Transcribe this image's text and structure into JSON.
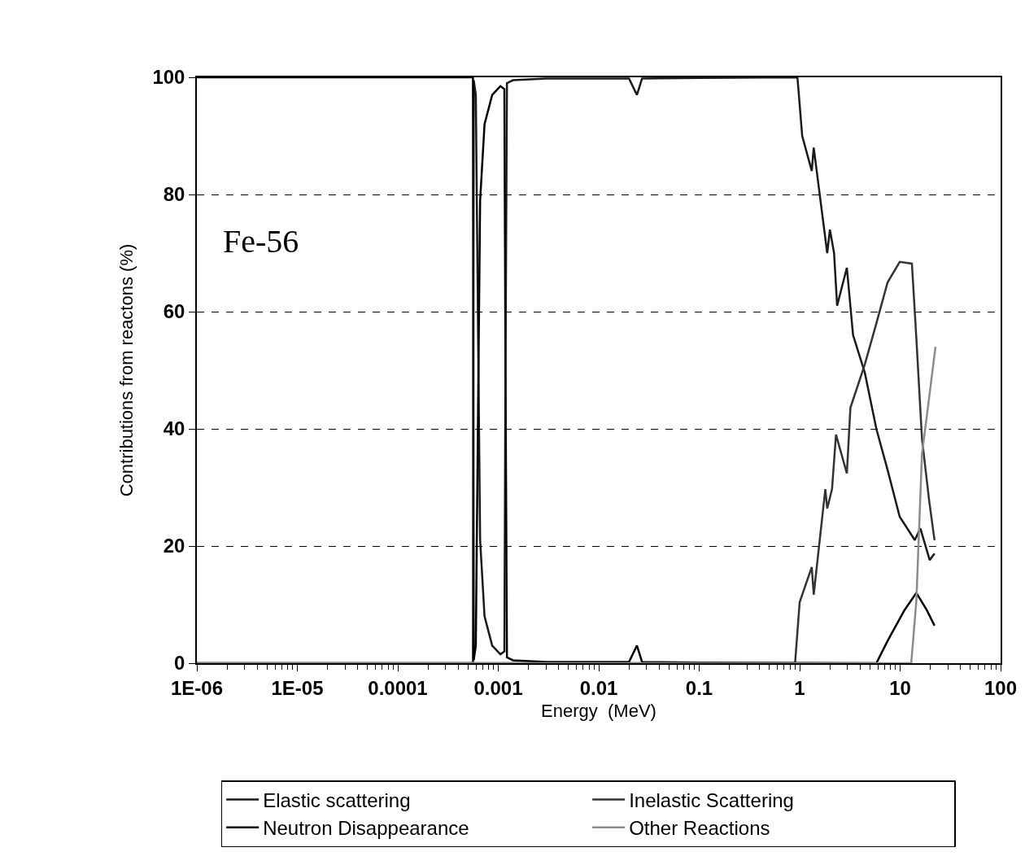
{
  "chart_data": {
    "type": "line",
    "xlabel": "Energy  (MeV)",
    "ylabel": "Contributions from reactons (%)",
    "annotations": [
      "Fe-56"
    ],
    "log": "x",
    "grid": "y",
    "legend": "bottom",
    "line_style": "solid",
    "marker": "none",
    "xlim": [
      1e-06,
      100
    ],
    "xticks": [
      {
        "value": 1e-06,
        "label": "1E-06"
      },
      {
        "value": 1e-05,
        "label": "1E-05"
      },
      0.0001,
      0.001,
      0.01,
      0.1,
      1,
      10,
      100
    ],
    "ylim": [
      0,
      100
    ],
    "yticks": [
      0,
      20,
      40,
      60,
      80,
      100
    ],
    "series": [
      {
        "name": "Elastic scattering",
        "color": "#1a1a1a",
        "x": [
          1e-06,
          0.00056,
          0.00057,
          0.000598,
          0.00063,
          0.00066,
          0.00073,
          0.00087,
          0.00105,
          0.00115,
          0.00118,
          0.00122,
          0.0014,
          0.003,
          0.02,
          0.024,
          0.027,
          0.1,
          0.95,
          1.06,
          1.32,
          1.38,
          1.88,
          2.0,
          2.2,
          2.36,
          2.95,
          3.4,
          4.45,
          5.8,
          7.5,
          9.9,
          14,
          15.9,
          19.7,
          22
        ],
        "values": [
          0,
          0,
          99.5,
          97,
          56,
          21,
          8,
          3,
          1.5,
          2,
          50,
          99,
          99.5,
          99.8,
          99.8,
          97,
          99.8,
          99.9,
          100,
          90,
          84,
          88,
          70,
          74,
          70,
          61,
          67.5,
          56,
          49.6,
          40,
          33,
          25,
          21,
          23,
          17.6,
          18.7
        ]
      },
      {
        "name": "Inelastic Scattering",
        "color": "#333333",
        "x": [
          1e-06,
          0.9,
          1.0,
          1.32,
          1.38,
          1.8,
          1.88,
          2.1,
          2.3,
          2.95,
          3.2,
          4.45,
          5.8,
          7.5,
          9.9,
          13.1,
          14.5,
          16.5,
          19.5,
          22
        ],
        "values": [
          0,
          0,
          10.4,
          16.4,
          11.7,
          29.7,
          26.4,
          29.7,
          39,
          32.4,
          43.6,
          51,
          58,
          65,
          68.5,
          68.2,
          55.5,
          38.3,
          27.6,
          21
        ]
      },
      {
        "name": "Neutron Disappearance",
        "color": "#000000",
        "x": [
          1e-06,
          0.00056,
          0.00057,
          0.000598,
          0.00063,
          0.00066,
          0.00073,
          0.00087,
          0.00105,
          0.00115,
          0.00118,
          0.00122,
          0.0014,
          0.003,
          0.02,
          0.024,
          0.027,
          0.1,
          5.8,
          7.5,
          11,
          14.5,
          18.5,
          22
        ],
        "values": [
          100,
          100,
          0.5,
          3,
          44,
          79,
          92,
          97,
          98.5,
          98,
          50,
          1,
          0.5,
          0.2,
          0.2,
          3,
          0.2,
          0.1,
          0,
          3.8,
          9,
          12,
          9,
          6.4
        ]
      },
      {
        "name": "Other Reactions",
        "color": "#8c8c8c",
        "x": [
          1e-06,
          12.9,
          14.5,
          16.5,
          19.5,
          22.5
        ],
        "values": [
          0,
          0,
          10.6,
          35.7,
          45.5,
          54
        ]
      }
    ]
  }
}
